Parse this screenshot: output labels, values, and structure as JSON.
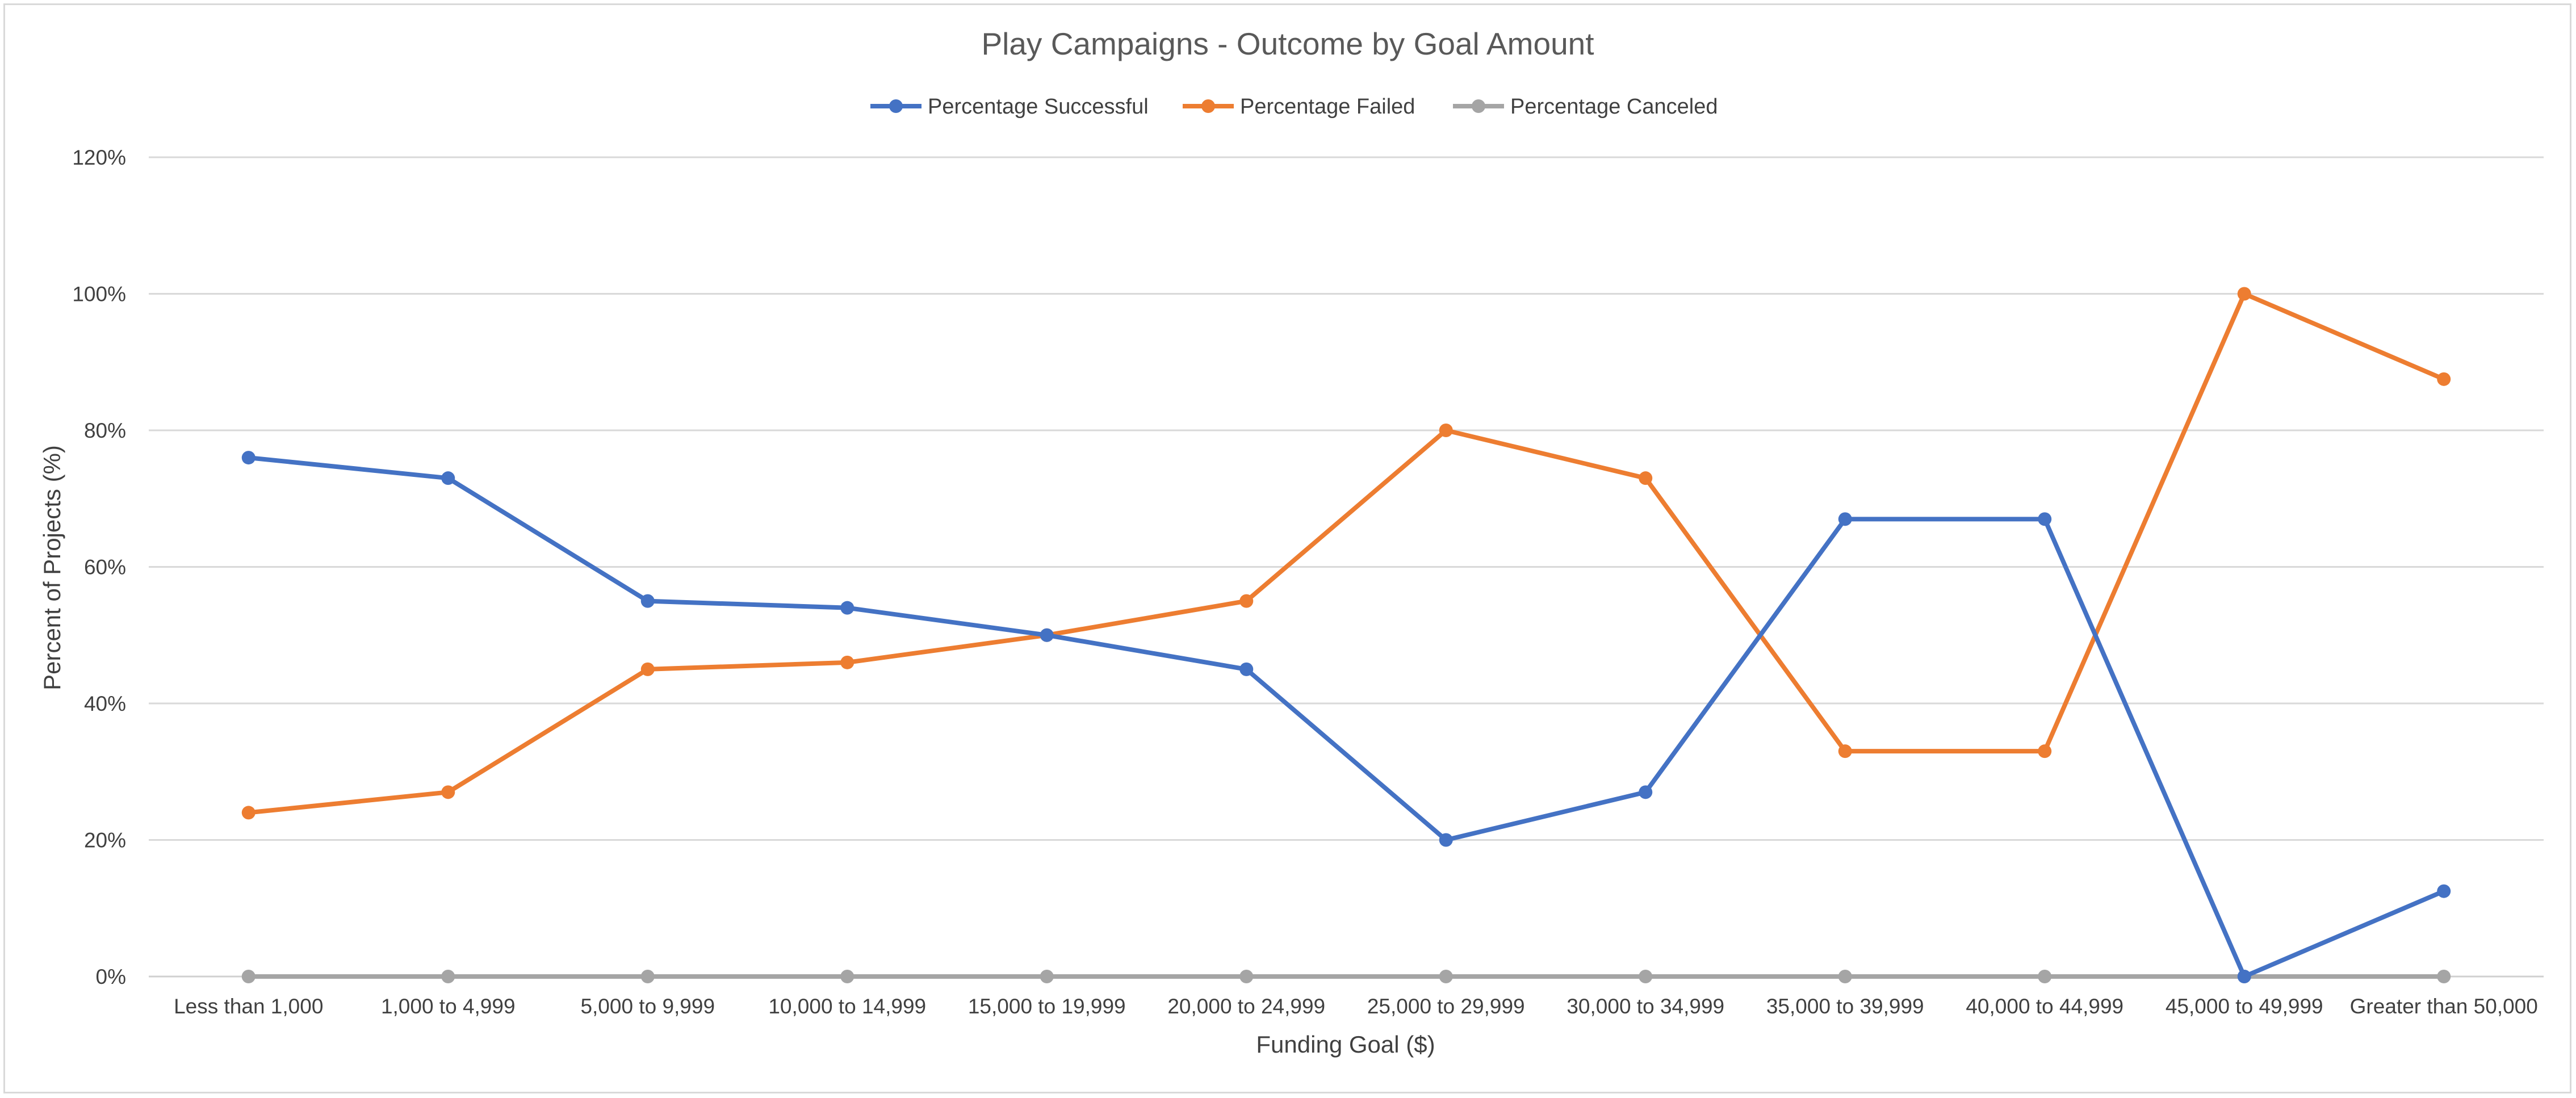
{
  "chart_data": {
    "type": "line",
    "title": "Play Campaigns - Outcome by Goal Amount",
    "xlabel": "Funding Goal ($)",
    "ylabel": "Percent of Projects (%)",
    "categories": [
      "Less than 1,000",
      "1,000 to 4,999",
      "5,000 to 9,999",
      "10,000 to 14,999",
      "15,000 to 19,999",
      "20,000 to 24,999",
      "25,000 to 29,999",
      "30,000 to 34,999",
      "35,000 to 39,999",
      "40,000 to 44,999",
      "45,000 to 49,999",
      "Greater than 50,000"
    ],
    "yticks": [
      "0%",
      "20%",
      "40%",
      "60%",
      "80%",
      "100%",
      "120%"
    ],
    "ylim": [
      0,
      120
    ],
    "grid": true,
    "legend_position": "top",
    "series": [
      {
        "name": "Percentage Successful",
        "color": "#4472c4",
        "values": [
          76,
          73,
          55,
          54,
          50,
          45,
          20,
          27,
          67,
          67,
          0,
          12.5
        ]
      },
      {
        "name": "Percentage Failed",
        "color": "#ed7d31",
        "values": [
          24,
          27,
          45,
          46,
          50,
          55,
          80,
          73,
          33,
          33,
          100,
          87.5
        ]
      },
      {
        "name": "Percentage Canceled",
        "color": "#a5a5a5",
        "values": [
          0,
          0,
          0,
          0,
          0,
          0,
          0,
          0,
          0,
          0,
          0,
          0
        ]
      }
    ]
  }
}
